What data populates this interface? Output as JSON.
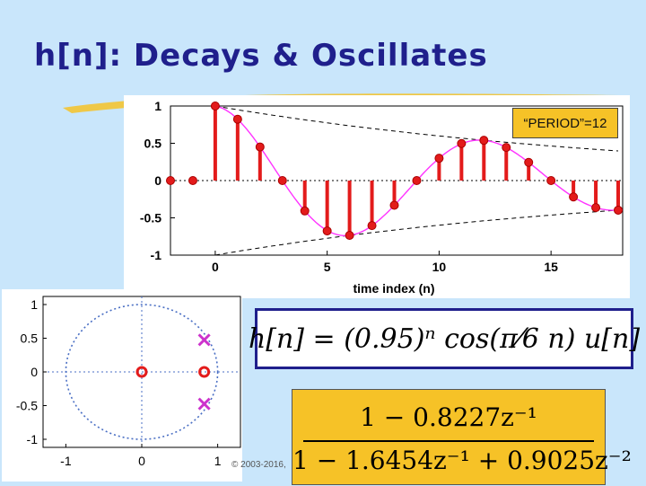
{
  "slide": {
    "title": "h[n]: Decays & Oscillates",
    "copyright": "© 2003-2016,",
    "period_label": "“PERIOD”=12",
    "equation_1": "h[n] = (0.95)ⁿ cos(π⁄6 n) u[n]",
    "transfer_numerator": "1 − 0.8227z⁻¹",
    "transfer_denominator": "1 − 1.6454z⁻¹ + 0.9025z⁻²"
  },
  "colors": {
    "background": "#c9e6fb",
    "title": "#1f1f8c",
    "stem": "#e31b1b",
    "envelope_curve": "#ff33ff",
    "pole_marker": "#cc33cc",
    "box_fill": "#f6c227"
  },
  "chart_data": [
    {
      "type": "stem",
      "xlabel": "time index (n)",
      "xlim": [
        -2,
        18.2
      ],
      "ylim": [
        -1,
        1
      ],
      "xticks": [
        "0",
        "5",
        "10",
        "15"
      ],
      "xtick_values": [
        0,
        5,
        10,
        15
      ],
      "yticks": [
        "1",
        "0.5",
        "0",
        "-0.5",
        "-1"
      ],
      "ytick_values": [
        1,
        0.5,
        0,
        -0.5,
        -1
      ],
      "n": [
        -2,
        -1,
        0,
        1,
        2,
        3,
        4,
        5,
        6,
        7,
        8,
        9,
        10,
        11,
        12,
        13,
        14,
        15,
        16,
        17,
        18
      ],
      "values": [
        0,
        0,
        1.0,
        0.823,
        0.451,
        0.0,
        -0.407,
        -0.676,
        -0.735,
        -0.604,
        -0.331,
        0.0,
        0.299,
        0.497,
        0.54,
        0.444,
        0.244,
        0.0,
        -0.22,
        -0.363,
        -0.397
      ],
      "envelope": "±(0.95)^n",
      "annotation": "“PERIOD”=12"
    },
    {
      "type": "scatter",
      "subtype": "pole-zero plot",
      "xlim": [
        -1.3,
        1.3
      ],
      "ylim": [
        -1.12,
        1.12
      ],
      "xticks": [
        "-1",
        "0",
        "1"
      ],
      "xtick_values": [
        -1,
        0,
        1
      ],
      "yticks": [
        "1",
        "0.5",
        "0",
        "-0.5",
        "-1"
      ],
      "ytick_values": [
        1,
        0.5,
        0,
        -0.5,
        -1
      ],
      "unit_circle": true,
      "zeros": [
        [
          0,
          0
        ],
        [
          0.8227,
          0
        ]
      ],
      "poles": [
        [
          0.8227,
          0.475
        ],
        [
          0.8227,
          -0.475
        ]
      ]
    }
  ]
}
